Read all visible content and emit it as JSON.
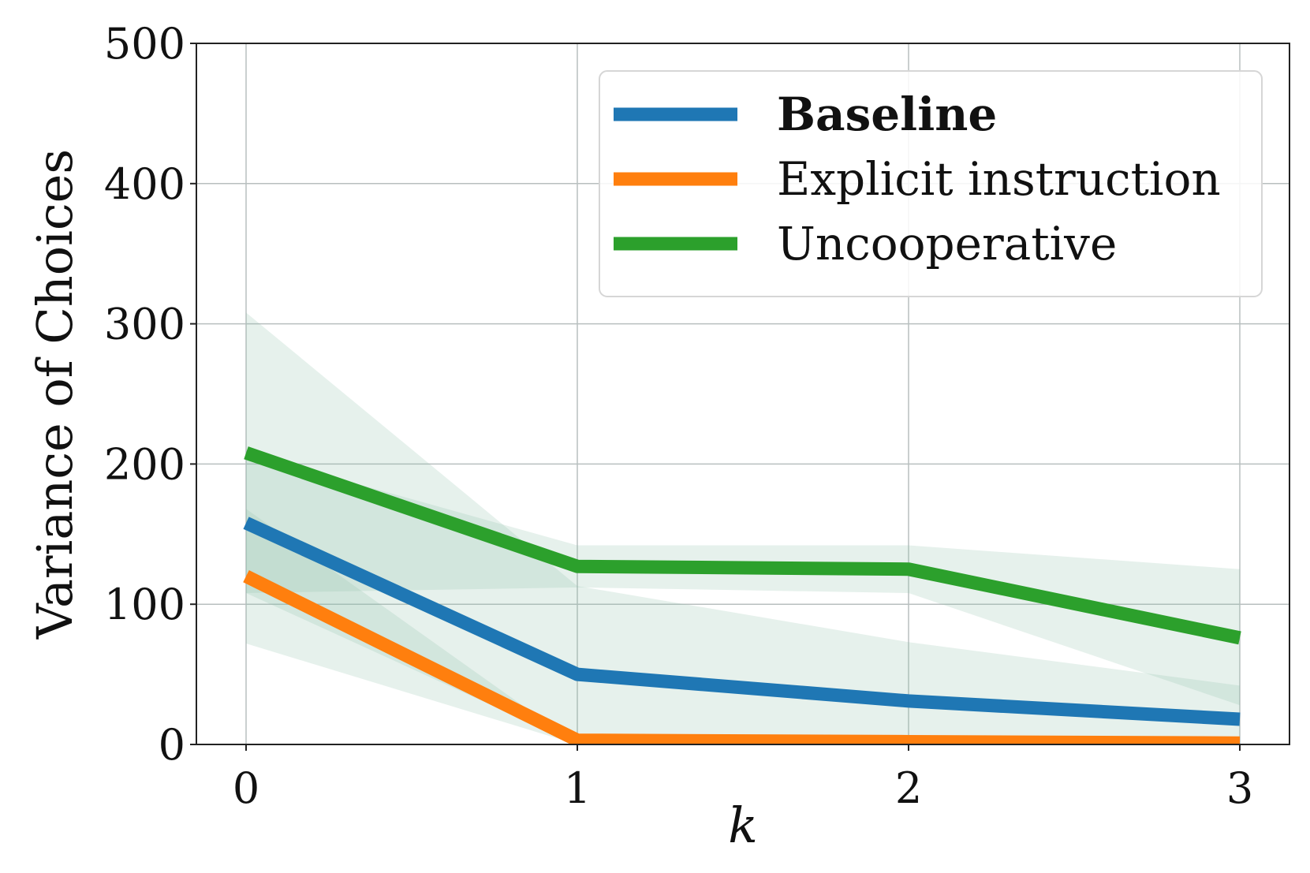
{
  "chart_data": {
    "type": "line",
    "xlabel": "k",
    "ylabel": "Variance of Choices",
    "x": [
      0,
      1,
      2,
      3
    ],
    "xticks": [
      "0",
      "1",
      "2",
      "3"
    ],
    "yticks": [
      "0",
      "100",
      "200",
      "300",
      "400",
      "500"
    ],
    "xlim": [
      -0.15,
      3.15
    ],
    "ylim": [
      0,
      500
    ],
    "grid": true,
    "legend": {
      "placement": "top-right"
    },
    "series": [
      {
        "name": "Baseline",
        "color": "#1f77b4",
        "bold": true,
        "values": [
          158,
          50,
          31,
          18
        ],
        "lower": [
          72,
          0,
          0,
          0
        ],
        "upper": [
          308,
          113,
          73,
          42
        ]
      },
      {
        "name": "Explicit instruction",
        "color": "#ff7f0e",
        "bold": false,
        "values": [
          120,
          3,
          2,
          1
        ],
        "lower": [
          108,
          0,
          0,
          0
        ],
        "upper": [
          168,
          0,
          0,
          0
        ]
      },
      {
        "name": "Uncooperative",
        "color": "#2ca02c",
        "bold": false,
        "values": [
          208,
          127,
          125,
          76
        ],
        "lower": [
          108,
          112,
          108,
          28
        ],
        "upper": [
          208,
          142,
          142,
          125
        ]
      }
    ]
  }
}
